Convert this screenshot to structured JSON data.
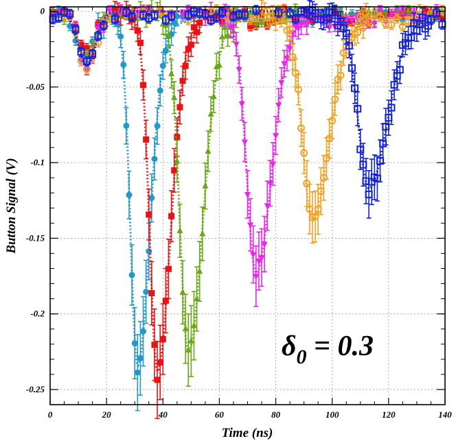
{
  "chart_data": {
    "type": "scatter",
    "title": "",
    "xlabel": "Time (ns)",
    "ylabel": "Button Signal (V)",
    "xlim": [
      0,
      140
    ],
    "ylim": [
      -0.26,
      0.003
    ],
    "xticks": [
      "0",
      "20",
      "40",
      "60",
      "80",
      "100",
      "120",
      "140"
    ],
    "yticks": [
      "0",
      "-0.05",
      "-0.1",
      "-0.15",
      "-0.2",
      "-0.25"
    ],
    "grid": true,
    "legend": "none",
    "annotation": {
      "symbol": "δ",
      "subscript": "0",
      "rest": " = 0.3"
    },
    "series": [
      {
        "color": "#2299cc",
        "marker": "circle",
        "filled": true,
        "peak_x": 31,
        "peak_y": -0.225,
        "pre_dip_x": 13,
        "pre_dip_y": -0.03,
        "width": 3.6,
        "start_x": 20
      },
      {
        "color": "#ee1111",
        "marker": "square",
        "filled": true,
        "peak_x": 38,
        "peak_y": -0.228,
        "pre_dip_x": 13,
        "pre_dip_y": -0.03,
        "width": 3.9,
        "start_x": 26
      },
      {
        "color": "#66aa11",
        "marker": "triangle-up",
        "filled": true,
        "peak_x": 49,
        "peak_y": -0.215,
        "pre_dip_x": 13,
        "pre_dip_y": -0.031,
        "width": 4.3,
        "start_x": 36
      },
      {
        "color": "#ee22ee",
        "marker": "triangle-down",
        "filled": true,
        "peak_x": 73,
        "peak_y": -0.163,
        "pre_dip_x": 13,
        "pre_dip_y": -0.033,
        "width": 4.6,
        "start_x": 58
      },
      {
        "color": "#f5a020",
        "marker": "circle",
        "filled": false,
        "peak_x": 93,
        "peak_y": -0.127,
        "pre_dip_x": 13,
        "pre_dip_y": -0.035,
        "width": 5.0,
        "start_x": 78
      },
      {
        "color": "#1122dd",
        "marker": "square",
        "filled": false,
        "peak_x": 113,
        "peak_y": -0.107,
        "pre_dip_x": 13,
        "pre_dip_y": -0.036,
        "width": 5.4,
        "start_x": 100
      }
    ]
  }
}
